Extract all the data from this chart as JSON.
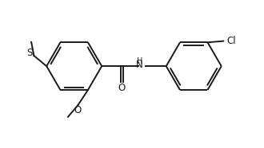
{
  "bg_color": "#ffffff",
  "line_color": "#1a1a1a",
  "line_width": 1.4,
  "font_size": 8.5,
  "figsize": [
    3.3,
    1.86
  ],
  "dpi": 100,
  "xlim": [
    0,
    10
  ],
  "ylim": [
    0,
    5.6
  ]
}
